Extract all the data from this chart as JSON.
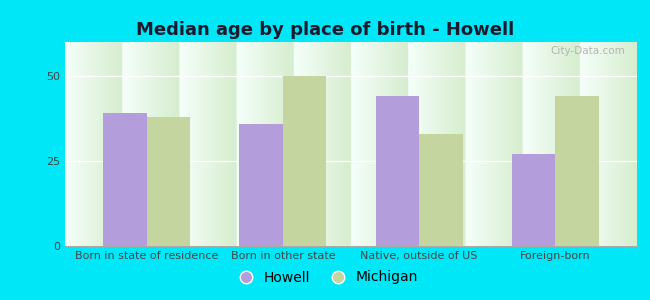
{
  "title": "Median age by place of birth - Howell",
  "categories": [
    "Born in state of residence",
    "Born in other state",
    "Native, outside of US",
    "Foreign-born"
  ],
  "howell_values": [
    39,
    36,
    44,
    27
  ],
  "michigan_values": [
    38,
    50,
    33,
    44
  ],
  "howell_color": "#b39ddb",
  "michigan_color": "#c5d5a0",
  "background_outer": "#00e8f8",
  "background_inner_top": "#f5fffa",
  "background_inner_bottom": "#d6edce",
  "ylim": [
    0,
    60
  ],
  "yticks": [
    0,
    25,
    50
  ],
  "bar_width": 0.32,
  "legend_labels": [
    "Howell",
    "Michigan"
  ],
  "title_fontsize": 13,
  "tick_fontsize": 8,
  "legend_fontsize": 10,
  "watermark": "City-Data.com"
}
